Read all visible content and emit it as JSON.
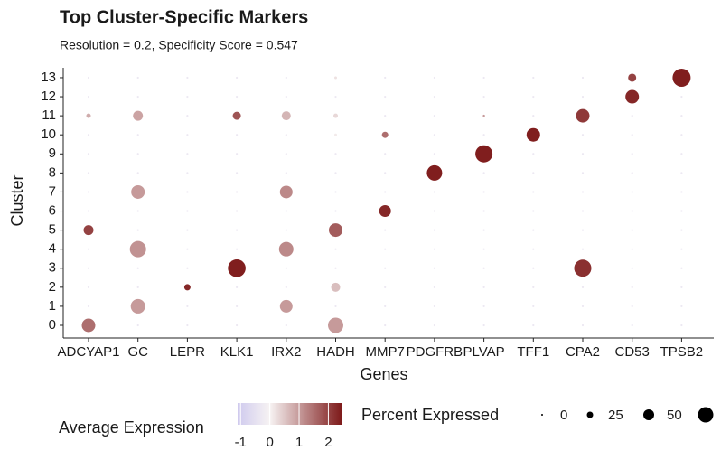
{
  "chart_data": {
    "type": "dot",
    "title": "Top Cluster-Specific Markers",
    "subtitle": "Resolution = 0.2, Specificity Score = 0.547",
    "x_label": "Genes",
    "y_label": "Cluster",
    "categories": [
      "ADCYAP1",
      "GC",
      "LEPR",
      "KLK1",
      "IRX2",
      "HADH",
      "MMP7",
      "PDGFRB",
      "PLVAP",
      "TFF1",
      "CPA2",
      "CD53",
      "TPSB2"
    ],
    "clusters": [
      0,
      1,
      2,
      3,
      4,
      5,
      6,
      7,
      8,
      9,
      10,
      11,
      12,
      13
    ],
    "pct_expressed": [
      [
        65,
        1,
        1,
        1,
        1,
        45,
        1,
        1,
        1,
        1,
        1,
        15,
        1,
        1
      ],
      [
        1,
        70,
        1,
        1,
        80,
        1,
        1,
        65,
        1,
        1,
        1,
        45,
        1,
        1
      ],
      [
        1,
        1,
        25,
        1,
        1,
        1,
        1,
        1,
        1,
        1,
        1,
        1,
        1,
        1
      ],
      [
        1,
        1,
        1,
        88,
        1,
        1,
        1,
        1,
        1,
        1,
        1,
        35,
        1,
        1
      ],
      [
        1,
        60,
        1,
        1,
        70,
        1,
        1,
        60,
        1,
        1,
        1,
        40,
        1,
        1
      ],
      [
        75,
        1,
        40,
        1,
        1,
        65,
        1,
        1,
        1,
        1,
        5,
        15,
        1,
        5
      ],
      [
        1,
        1,
        1,
        1,
        1,
        1,
        55,
        1,
        1,
        1,
        25,
        1,
        1,
        1
      ],
      [
        1,
        1,
        1,
        1,
        1,
        1,
        1,
        1,
        75,
        1,
        1,
        1,
        1,
        1
      ],
      [
        1,
        1,
        1,
        1,
        1,
        1,
        1,
        1,
        1,
        85,
        1,
        2,
        1,
        1
      ],
      [
        1,
        1,
        1,
        1,
        1,
        1,
        1,
        1,
        1,
        1,
        65,
        1,
        1,
        1
      ],
      [
        1,
        1,
        1,
        85,
        1,
        1,
        1,
        1,
        1,
        1,
        1,
        65,
        1,
        1
      ],
      [
        1,
        1,
        1,
        1,
        1,
        1,
        1,
        1,
        1,
        1,
        1,
        1,
        65,
        35
      ],
      [
        1,
        1,
        1,
        1,
        1,
        1,
        1,
        1,
        1,
        1,
        1,
        1,
        1,
        90
      ]
    ],
    "avg_expression": [
      [
        1.5,
        -0.3,
        -0.3,
        -0.3,
        -0.3,
        2,
        -0.3,
        -0.3,
        -0.3,
        -0.3,
        -0.3,
        0.8,
        -0.3,
        -0.3
      ],
      [
        -0.3,
        1,
        -0.3,
        -0.3,
        1.1,
        -0.3,
        -0.3,
        1,
        -0.3,
        -0.3,
        -0.3,
        0.9,
        -0.3,
        -0.3
      ],
      [
        -0.3,
        -0.3,
        2.3,
        -0.3,
        -0.3,
        -0.3,
        -0.3,
        -0.3,
        -0.3,
        -0.3,
        -0.3,
        -0.3,
        -0.3,
        -0.3
      ],
      [
        -0.3,
        -0.3,
        -0.3,
        2.4,
        -0.3,
        -0.3,
        -0.3,
        -0.3,
        -0.3,
        -0.3,
        -0.3,
        1.8,
        -0.3,
        -0.3
      ],
      [
        -0.3,
        1,
        -0.3,
        -0.3,
        1.2,
        -0.3,
        -0.3,
        1.2,
        -0.3,
        -0.3,
        -0.3,
        0.7,
        -0.3,
        -0.3
      ],
      [
        1,
        -0.3,
        0.6,
        -0.3,
        -0.3,
        1.7,
        -0.3,
        -0.3,
        -0.3,
        -0.3,
        0.1,
        0.3,
        -0.3,
        0.2
      ],
      [
        -0.3,
        -0.3,
        -0.3,
        -0.3,
        -0.3,
        -0.3,
        2.3,
        -0.3,
        -0.3,
        -0.3,
        1.5,
        -0.3,
        -0.3,
        -0.3
      ],
      [
        -0.3,
        -0.3,
        -0.3,
        -0.3,
        -0.3,
        -0.3,
        -0.3,
        -0.3,
        2.4,
        -0.3,
        -0.3,
        -0.3,
        -0.3,
        -0.3
      ],
      [
        -0.3,
        -0.3,
        -0.3,
        -0.3,
        -0.3,
        -0.3,
        -0.3,
        -0.3,
        -0.3,
        2.4,
        -0.3,
        1,
        -0.3,
        -0.3
      ],
      [
        -0.3,
        -0.3,
        -0.3,
        -0.3,
        -0.3,
        -0.3,
        -0.3,
        -0.3,
        -0.3,
        -0.3,
        2.4,
        -0.3,
        -0.3,
        -0.3
      ],
      [
        -0.3,
        -0.3,
        -0.3,
        2.2,
        -0.3,
        -0.3,
        -0.3,
        -0.3,
        -0.3,
        -0.3,
        -0.3,
        2.1,
        -0.3,
        -0.3
      ],
      [
        -0.3,
        -0.3,
        -0.3,
        -0.3,
        -0.3,
        -0.3,
        -0.3,
        -0.3,
        -0.3,
        -0.3,
        -0.3,
        -0.3,
        2.3,
        2
      ],
      [
        -0.3,
        -0.3,
        -0.3,
        -0.3,
        -0.3,
        -0.3,
        -0.3,
        -0.3,
        -0.3,
        -0.3,
        -0.3,
        -0.3,
        -0.3,
        2.4
      ]
    ],
    "color_title": "Average Expression",
    "color_low": "#cfcaee",
    "color_mid": "#f7f3f3",
    "color_high": "#7e1a1a",
    "color_lim": [
      -1.1,
      2.45
    ],
    "color_ticks": [
      -1,
      0,
      1,
      2
    ],
    "size_title": "Percent Expressed",
    "size_breaks": [
      0,
      25,
      50,
      75
    ],
    "size_break_labels": [
      "0",
      "25",
      "50",
      null
    ],
    "size_color": "#000000"
  }
}
